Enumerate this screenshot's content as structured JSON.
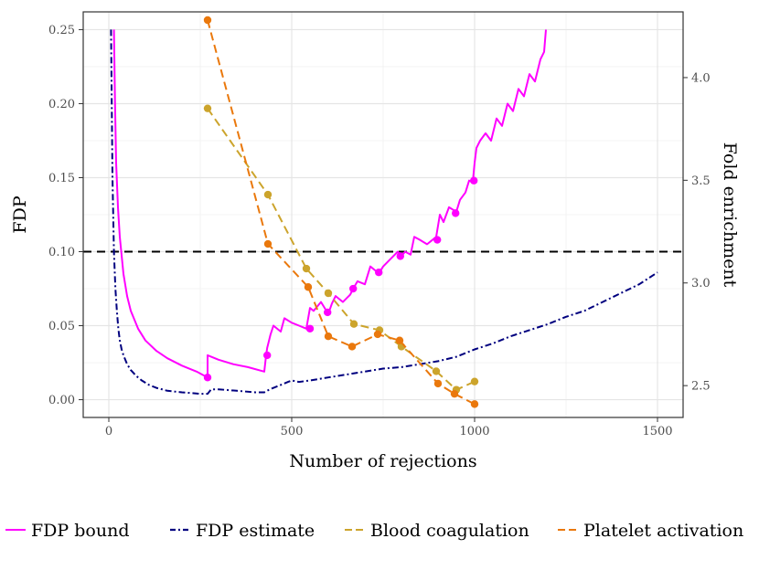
{
  "chart_data": {
    "type": "line",
    "title": "",
    "xlabel": "Number of rejections",
    "ylabel": "FDP",
    "y2label": "Fold enrichment",
    "xlim": [
      -70,
      1570
    ],
    "ylim": [
      -0.012,
      0.262
    ],
    "y2lim": [
      2.345,
      4.32
    ],
    "x_ticks": [
      0,
      500,
      1000,
      1500
    ],
    "y_ticks": [
      0.0,
      0.05,
      0.1,
      0.15,
      0.2,
      0.25
    ],
    "y_tick_labels": [
      "0.00",
      "0.05",
      "0.10",
      "0.15",
      "0.20",
      "0.25"
    ],
    "y2_ticks": [
      2.5,
      3.0,
      3.5,
      4.0
    ],
    "y2_tick_labels": [
      "2.5",
      "3.0",
      "3.5",
      "4.0"
    ],
    "hline": 0.1,
    "grid": true,
    "legend_position": "bottom",
    "series": [
      {
        "name": "FDP bound",
        "color": "#ff00ff",
        "dash": "solid",
        "axis": "left",
        "x": [
          14,
          17,
          20,
          25,
          30,
          40,
          50,
          60,
          80,
          100,
          130,
          160,
          200,
          240,
          270,
          270,
          300,
          340,
          380,
          425,
          430,
          433,
          436,
          442,
          450,
          470,
          480,
          500,
          520,
          540,
          550,
          560,
          580,
          590,
          600,
          610,
          620,
          640,
          660,
          668,
          680,
          700,
          715,
          730,
          740,
          750,
          770,
          790,
          800,
          810,
          825,
          835,
          850,
          870,
          895,
          905,
          915,
          930,
          950,
          960,
          975,
          985,
          995,
          1000,
          1005,
          1015,
          1030,
          1045,
          1060,
          1075,
          1090,
          1105,
          1120,
          1135,
          1150,
          1165,
          1180,
          1190,
          1195
        ],
        "values": [
          0.25,
          0.2,
          0.16,
          0.13,
          0.11,
          0.085,
          0.07,
          0.06,
          0.048,
          0.04,
          0.033,
          0.028,
          0.023,
          0.019,
          0.015,
          0.03,
          0.027,
          0.024,
          0.022,
          0.019,
          0.03,
          0.035,
          0.038,
          0.044,
          0.05,
          0.046,
          0.055,
          0.052,
          0.05,
          0.048,
          0.062,
          0.06,
          0.066,
          0.062,
          0.058,
          0.065,
          0.07,
          0.066,
          0.071,
          0.075,
          0.08,
          0.078,
          0.09,
          0.087,
          0.086,
          0.09,
          0.095,
          0.1,
          0.097,
          0.1,
          0.098,
          0.11,
          0.108,
          0.105,
          0.11,
          0.125,
          0.12,
          0.13,
          0.127,
          0.135,
          0.14,
          0.148,
          0.147,
          0.16,
          0.17,
          0.175,
          0.18,
          0.175,
          0.19,
          0.185,
          0.2,
          0.195,
          0.21,
          0.205,
          0.22,
          0.215,
          0.23,
          0.235,
          0.25
        ]
      },
      {
        "name": "FDP estimate",
        "color": "#00007f",
        "dash": "dotdash",
        "axis": "left",
        "x": [
          6,
          10,
          14,
          18,
          22,
          26,
          30,
          35,
          40,
          50,
          60,
          75,
          90,
          110,
          130,
          160,
          200,
          250,
          270,
          280,
          300,
          350,
          400,
          425,
          440,
          470,
          490,
          500,
          520,
          550,
          600,
          650,
          700,
          750,
          800,
          850,
          900,
          950,
          1000,
          1050,
          1100,
          1150,
          1200,
          1250,
          1300,
          1350,
          1400,
          1450,
          1500
        ],
        "values": [
          0.25,
          0.15,
          0.1,
          0.075,
          0.06,
          0.048,
          0.04,
          0.034,
          0.03,
          0.024,
          0.02,
          0.016,
          0.013,
          0.01,
          0.008,
          0.006,
          0.005,
          0.004,
          0.004,
          0.007,
          0.007,
          0.006,
          0.005,
          0.005,
          0.007,
          0.01,
          0.012,
          0.013,
          0.012,
          0.013,
          0.015,
          0.017,
          0.019,
          0.021,
          0.022,
          0.024,
          0.026,
          0.029,
          0.034,
          0.038,
          0.043,
          0.047,
          0.051,
          0.056,
          0.06,
          0.066,
          0.072,
          0.078,
          0.086
        ]
      },
      {
        "name": "Blood coagulation",
        "color": "#cca42c",
        "dash": "dashed",
        "axis": "right",
        "x": [
          270,
          435,
          540,
          600,
          670,
          740,
          800,
          895,
          950,
          1000
        ],
        "values": [
          3.85,
          3.43,
          3.07,
          2.95,
          2.8,
          2.77,
          2.69,
          2.57,
          2.48,
          2.52
        ],
        "markers": [
          true,
          true,
          true,
          true,
          true,
          true,
          true,
          true,
          true,
          true
        ]
      },
      {
        "name": "Platelet activation",
        "color": "#ea780c",
        "dash": "dashed",
        "axis": "right",
        "x": [
          270,
          435,
          545,
          600,
          665,
          735,
          795,
          900,
          945,
          1000
        ],
        "values": [
          4.28,
          3.19,
          2.98,
          2.74,
          2.69,
          2.75,
          2.72,
          2.51,
          2.46,
          2.41
        ],
        "markers": [
          true,
          true,
          true,
          true,
          true,
          true,
          true,
          true,
          true,
          true
        ]
      }
    ],
    "bound_markers": {
      "x": [
        270,
        433,
        550,
        598,
        668,
        738,
        797,
        898,
        948,
        998
      ],
      "values": [
        0.015,
        0.03,
        0.048,
        0.059,
        0.075,
        0.086,
        0.097,
        0.108,
        0.126,
        0.148
      ]
    }
  }
}
